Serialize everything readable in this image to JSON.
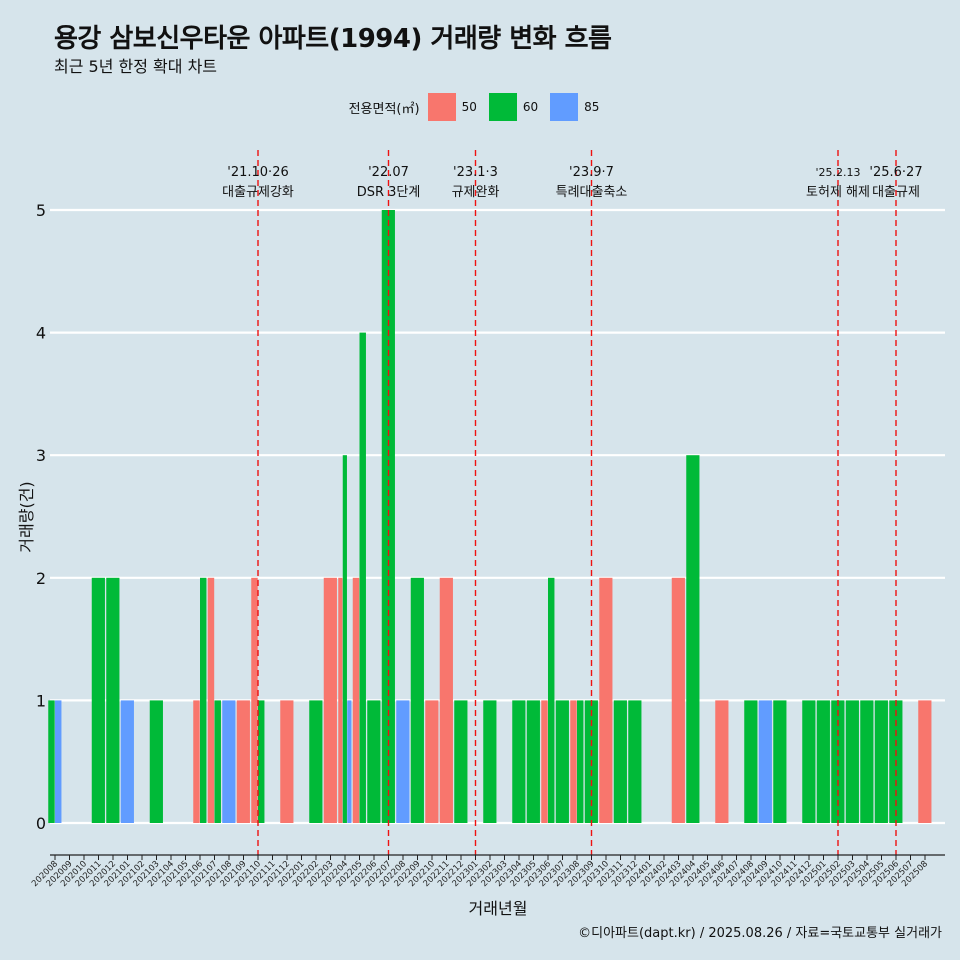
{
  "title": "용강 삼보신우타운 아파트(1994) 거래량 변화 흐름",
  "subtitle": "최근 5년 한정 확대 차트",
  "caption": "©디아파트(dapt.kr) / 2025.08.26 / 자료=국토교통부 실거래가",
  "legend": {
    "title": "전용면적(㎡)",
    "items": [
      {
        "label": "50",
        "color": "#f8766d"
      },
      {
        "label": "60",
        "color": "#00ba38"
      },
      {
        "label": "85",
        "color": "#619cff"
      }
    ]
  },
  "chart_data": {
    "type": "bar",
    "title": "용강 삼보신우타운 아파트(1994) 거래량 변화 흐름",
    "xlabel": "거래년월",
    "ylabel": "거래량(건)",
    "ylim": [
      0,
      5
    ],
    "yticks": [
      0,
      1,
      2,
      3,
      4,
      5
    ],
    "grid": true,
    "legend_position": "top",
    "categories": [
      "202008",
      "202009",
      "202010",
      "202011",
      "202012",
      "202101",
      "202102",
      "202103",
      "202104",
      "202105",
      "202106",
      "202107",
      "202108",
      "202109",
      "202110",
      "202111",
      "202112",
      "202201",
      "202202",
      "202203",
      "202204",
      "202205",
      "202206",
      "202207",
      "202208",
      "202209",
      "202210",
      "202211",
      "202212",
      "202301",
      "202302",
      "202303",
      "202304",
      "202305",
      "202306",
      "202307",
      "202308",
      "202309",
      "202310",
      "202311",
      "202312",
      "202401",
      "202402",
      "202403",
      "202404",
      "202405",
      "202406",
      "202407",
      "202408",
      "202409",
      "202410",
      "202411",
      "202412",
      "202501",
      "202502",
      "202503",
      "202504",
      "202505",
      "202506",
      "202507",
      "202508"
    ],
    "series": [
      {
        "name": "50",
        "color": "#f8766d",
        "values": [
          0,
          0,
          0,
          0,
          0,
          0,
          0,
          0,
          0,
          0,
          1,
          2,
          0,
          1,
          2,
          0,
          1,
          0,
          0,
          2,
          2,
          2,
          0,
          0,
          0,
          0,
          1,
          2,
          0,
          0,
          0,
          0,
          0,
          0,
          1,
          0,
          1,
          0,
          2,
          0,
          0,
          0,
          0,
          2,
          0,
          0,
          1,
          0,
          0,
          0,
          0,
          0,
          0,
          0,
          0,
          0,
          0,
          0,
          0,
          0,
          1
        ]
      },
      {
        "name": "60",
        "color": "#00ba38",
        "values": [
          1,
          0,
          0,
          2,
          2,
          0,
          0,
          1,
          0,
          0,
          2,
          1,
          0,
          0,
          1,
          0,
          0,
          0,
          1,
          0,
          3,
          4,
          1,
          5,
          0,
          2,
          0,
          0,
          1,
          0,
          1,
          0,
          1,
          1,
          2,
          1,
          1,
          1,
          0,
          1,
          1,
          0,
          0,
          0,
          3,
          0,
          0,
          0,
          1,
          0,
          1,
          0,
          1,
          1,
          1,
          1,
          1,
          1,
          1,
          0,
          0
        ]
      },
      {
        "name": "85",
        "color": "#619cff",
        "values": [
          1,
          0,
          0,
          0,
          0,
          1,
          0,
          0,
          0,
          0,
          0,
          0,
          1,
          0,
          0,
          0,
          0,
          0,
          0,
          0,
          1,
          0,
          0,
          0,
          1,
          0,
          0,
          0,
          0,
          0,
          0,
          0,
          0,
          0,
          0,
          0,
          0,
          0,
          0,
          0,
          0,
          0,
          0,
          0,
          0,
          0,
          0,
          0,
          0,
          1,
          0,
          0,
          0,
          0,
          0,
          0,
          0,
          0,
          0,
          0,
          0
        ]
      }
    ],
    "annotations": [
      {
        "x": "202110",
        "date": "'21.10·26",
        "label": "대출규제강화"
      },
      {
        "x": "202207",
        "date": "'22.07",
        "label": "DSR 3단계"
      },
      {
        "x": "202301",
        "date": "'23.1·3",
        "label": "규제완화"
      },
      {
        "x": "202309",
        "date": "'23.9·7",
        "label": "특례대출축소"
      },
      {
        "x": "202502",
        "date": "'25.2.13",
        "label": "토허제 해제"
      },
      {
        "x": "202506",
        "date": "'25.6·27",
        "label": "대출규제"
      }
    ]
  }
}
